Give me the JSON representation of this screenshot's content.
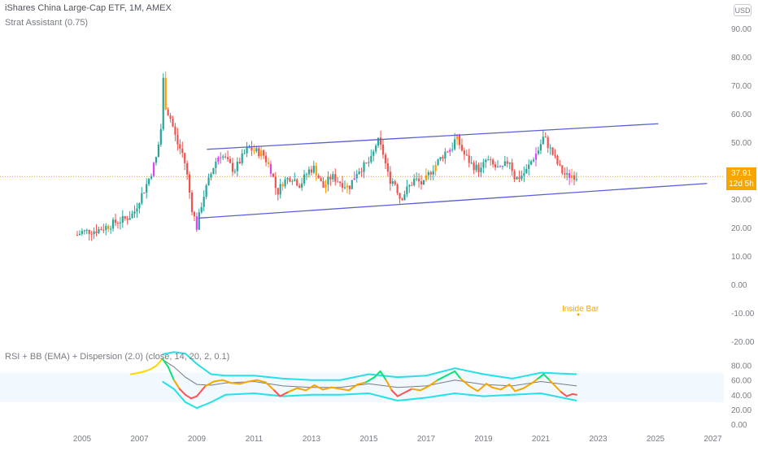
{
  "header": {
    "title": "iShares China Large-Cap ETF, 1M, AMEX",
    "indicator": "Strat Assistant (0.75)",
    "currency": "USD"
  },
  "price_tag": {
    "price": "37.91",
    "countdown": "12d 5h"
  },
  "annotation": {
    "inside_bar": "Inside Bar"
  },
  "colors": {
    "up": "#26a69a",
    "down": "#ef5350",
    "channel": "#5b5fd6",
    "rsi_high": "#00e676",
    "rsi_low": "#ff5252",
    "bb": "#26e0e8",
    "tag": "#f7a600",
    "pink": "#e040fb",
    "orange": "#ff9800"
  },
  "chart_data": [
    {
      "type": "candlestick",
      "title": "iShares China Large-Cap ETF, 1M, AMEX",
      "xlabel": "",
      "ylabel": "",
      "x_ticks": [
        "2005",
        "2007",
        "2009",
        "2011",
        "2013",
        "2015",
        "2017",
        "2019",
        "2021",
        "2023",
        "2025",
        "2027"
      ],
      "y_ticks": [
        "90.00",
        "80.00",
        "70.00",
        "60.00",
        "50.00",
        "40.00",
        "30.00",
        "20.00",
        "10.00",
        "0.00",
        "-10.00",
        "-20.00"
      ],
      "ylim": [
        -20,
        95
      ],
      "last_price": 37.91,
      "series": [
        {
          "key": "price",
          "values": [
            [
              2004.83,
              17.4
            ],
            [
              2005.0,
              18.5
            ],
            [
              2005.5,
              19.0
            ],
            [
              2005.9,
              20.5
            ],
            [
              2006.2,
              22.0
            ],
            [
              2006.5,
              23.0
            ],
            [
              2006.8,
              25.0
            ],
            [
              2007.0,
              30.0
            ],
            [
              2007.2,
              34.0
            ],
            [
              2007.4,
              39.0
            ],
            [
              2007.6,
              45.0
            ],
            [
              2007.75,
              55.0
            ],
            [
              2007.83,
              72.0
            ],
            [
              2007.92,
              62.0
            ],
            [
              2008.1,
              58.0
            ],
            [
              2008.3,
              50.0
            ],
            [
              2008.5,
              46.0
            ],
            [
              2008.6,
              42.0
            ],
            [
              2008.7,
              36.0
            ],
            [
              2008.8,
              28.0
            ],
            [
              2008.9,
              24.0
            ],
            [
              2009.0,
              20.0
            ],
            [
              2009.2,
              30.0
            ],
            [
              2009.4,
              36.0
            ],
            [
              2009.6,
              42.0
            ],
            [
              2009.8,
              46.0
            ],
            [
              2010.0,
              44.0
            ],
            [
              2010.3,
              40.0
            ],
            [
              2010.6,
              45.0
            ],
            [
              2010.8,
              48.0
            ],
            [
              2011.0,
              47.0
            ],
            [
              2011.3,
              46.0
            ],
            [
              2011.6,
              40.0
            ],
            [
              2011.8,
              32.0
            ],
            [
              2012.0,
              36.0
            ],
            [
              2012.3,
              38.0
            ],
            [
              2012.6,
              35.0
            ],
            [
              2012.9,
              40.0
            ],
            [
              2013.1,
              41.0
            ],
            [
              2013.4,
              34.0
            ],
            [
              2013.7,
              38.0
            ],
            [
              2014.0,
              36.0
            ],
            [
              2014.3,
              34.0
            ],
            [
              2014.6,
              40.0
            ],
            [
              2014.9,
              42.0
            ],
            [
              2015.1,
              44.0
            ],
            [
              2015.3,
              51.0
            ],
            [
              2015.5,
              46.0
            ],
            [
              2015.7,
              37.0
            ],
            [
              2015.9,
              36.0
            ],
            [
              2016.1,
              30.0
            ],
            [
              2016.3,
              33.0
            ],
            [
              2016.6,
              37.0
            ],
            [
              2016.9,
              35.0
            ],
            [
              2017.1,
              39.0
            ],
            [
              2017.4,
              43.0
            ],
            [
              2017.7,
              47.0
            ],
            [
              2017.9,
              48.0
            ],
            [
              2018.05,
              52.0
            ],
            [
              2018.3,
              46.0
            ],
            [
              2018.6,
              42.0
            ],
            [
              2018.9,
              40.0
            ],
            [
              2019.1,
              44.0
            ],
            [
              2019.3,
              42.0
            ],
            [
              2019.6,
              40.0
            ],
            [
              2019.9,
              44.0
            ],
            [
              2020.1,
              37.0
            ],
            [
              2020.3,
              38.0
            ],
            [
              2020.5,
              40.0
            ],
            [
              2020.7,
              44.0
            ],
            [
              2020.9,
              47.0
            ],
            [
              2021.1,
              52.0
            ],
            [
              2021.3,
              48.0
            ],
            [
              2021.5,
              44.0
            ],
            [
              2021.7,
              40.0
            ],
            [
              2021.9,
              38.0
            ],
            [
              2022.1,
              38.5
            ],
            [
              2022.25,
              37.9
            ]
          ]
        },
        {
          "key": "upper_channel",
          "values": [
            [
              2009.35,
              47.5
            ],
            [
              2025.1,
              56.5
            ]
          ]
        },
        {
          "key": "lower_channel",
          "values": [
            [
              2009.05,
              23.3
            ],
            [
              2026.8,
              35.5
            ]
          ]
        }
      ]
    },
    {
      "type": "line",
      "title": "RSI + BB (EMA) + Dispersion (2.0) (close, 14, 20, 2, 0.1)",
      "xlabel": "",
      "ylabel": "",
      "y_ticks": [
        "80.00",
        "60.00",
        "40.00",
        "20.00",
        "0.00"
      ],
      "ylim": [
        0,
        100
      ],
      "series": [
        {
          "key": "rsi",
          "values": [
            [
              2006.7,
              68
            ],
            [
              2007.0,
              70
            ],
            [
              2007.2,
              72
            ],
            [
              2007.4,
              75
            ],
            [
              2007.6,
              80
            ],
            [
              2007.8,
              89
            ],
            [
              2008.0,
              78
            ],
            [
              2008.2,
              60
            ],
            [
              2008.4,
              48
            ],
            [
              2008.6,
              40
            ],
            [
              2008.8,
              35
            ],
            [
              2009.0,
              38
            ],
            [
              2009.3,
              52
            ],
            [
              2009.6,
              58
            ],
            [
              2009.9,
              60
            ],
            [
              2010.2,
              56
            ],
            [
              2010.5,
              55
            ],
            [
              2010.8,
              58
            ],
            [
              2011.1,
              60
            ],
            [
              2011.4,
              57
            ],
            [
              2011.7,
              46
            ],
            [
              2011.9,
              38
            ],
            [
              2012.2,
              44
            ],
            [
              2012.5,
              49
            ],
            [
              2012.8,
              46
            ],
            [
              2013.1,
              53
            ],
            [
              2013.4,
              47
            ],
            [
              2013.7,
              50
            ],
            [
              2014.0,
              48
            ],
            [
              2014.3,
              46
            ],
            [
              2014.6,
              54
            ],
            [
              2014.9,
              57
            ],
            [
              2015.2,
              64
            ],
            [
              2015.4,
              72
            ],
            [
              2015.6,
              60
            ],
            [
              2015.8,
              46
            ],
            [
              2016.0,
              38
            ],
            [
              2016.2,
              42
            ],
            [
              2016.5,
              48
            ],
            [
              2016.8,
              46
            ],
            [
              2017.1,
              52
            ],
            [
              2017.4,
              60
            ],
            [
              2017.7,
              66
            ],
            [
              2018.0,
              72
            ],
            [
              2018.2,
              62
            ],
            [
              2018.5,
              52
            ],
            [
              2018.8,
              45
            ],
            [
              2019.1,
              55
            ],
            [
              2019.3,
              50
            ],
            [
              2019.6,
              47
            ],
            [
              2019.9,
              54
            ],
            [
              2020.1,
              45
            ],
            [
              2020.4,
              49
            ],
            [
              2020.7,
              56
            ],
            [
              2020.9,
              62
            ],
            [
              2021.1,
              68
            ],
            [
              2021.3,
              60
            ],
            [
              2021.5,
              52
            ],
            [
              2021.7,
              44
            ],
            [
              2021.9,
              38
            ],
            [
              2022.1,
              41
            ],
            [
              2022.25,
              40
            ]
          ]
        },
        {
          "key": "basis",
          "values": [
            [
              2007.8,
              88
            ],
            [
              2008.2,
              78
            ],
            [
              2008.6,
              64
            ],
            [
              2009.0,
              54
            ],
            [
              2009.5,
              53
            ],
            [
              2010.0,
              56
            ],
            [
              2011.0,
              58
            ],
            [
              2012.0,
              52
            ],
            [
              2013.0,
              50
            ],
            [
              2014.0,
              50
            ],
            [
              2015.0,
              55
            ],
            [
              2016.0,
              50
            ],
            [
              2017.0,
              52
            ],
            [
              2018.0,
              60
            ],
            [
              2019.0,
              54
            ],
            [
              2020.0,
              52
            ],
            [
              2021.0,
              58
            ],
            [
              2022.25,
              52
            ]
          ]
        },
        {
          "key": "upper_band",
          "values": [
            [
              2007.8,
              95
            ],
            [
              2008.2,
              98
            ],
            [
              2008.6,
              96
            ],
            [
              2009.0,
              82
            ],
            [
              2009.5,
              68
            ],
            [
              2010.0,
              66
            ],
            [
              2011.0,
              66
            ],
            [
              2012.0,
              62
            ],
            [
              2013.0,
              60
            ],
            [
              2014.0,
              60
            ],
            [
              2015.0,
              68
            ],
            [
              2016.0,
              64
            ],
            [
              2017.0,
              66
            ],
            [
              2018.0,
              76
            ],
            [
              2019.0,
              68
            ],
            [
              2020.0,
              62
            ],
            [
              2020.5,
              66
            ],
            [
              2021.0,
              70
            ],
            [
              2022.25,
              68
            ]
          ]
        },
        {
          "key": "lower_band",
          "values": [
            [
              2007.8,
              58
            ],
            [
              2008.2,
              48
            ],
            [
              2008.6,
              30
            ],
            [
              2009.0,
              22
            ],
            [
              2009.5,
              30
            ],
            [
              2010.0,
              40
            ],
            [
              2011.0,
              42
            ],
            [
              2012.0,
              38
            ],
            [
              2013.0,
              40
            ],
            [
              2014.0,
              40
            ],
            [
              2015.0,
              42
            ],
            [
              2016.0,
              32
            ],
            [
              2017.0,
              36
            ],
            [
              2018.0,
              42
            ],
            [
              2019.0,
              38
            ],
            [
              2020.0,
              40
            ],
            [
              2021.0,
              42
            ],
            [
              2022.25,
              32
            ]
          ]
        }
      ]
    }
  ]
}
